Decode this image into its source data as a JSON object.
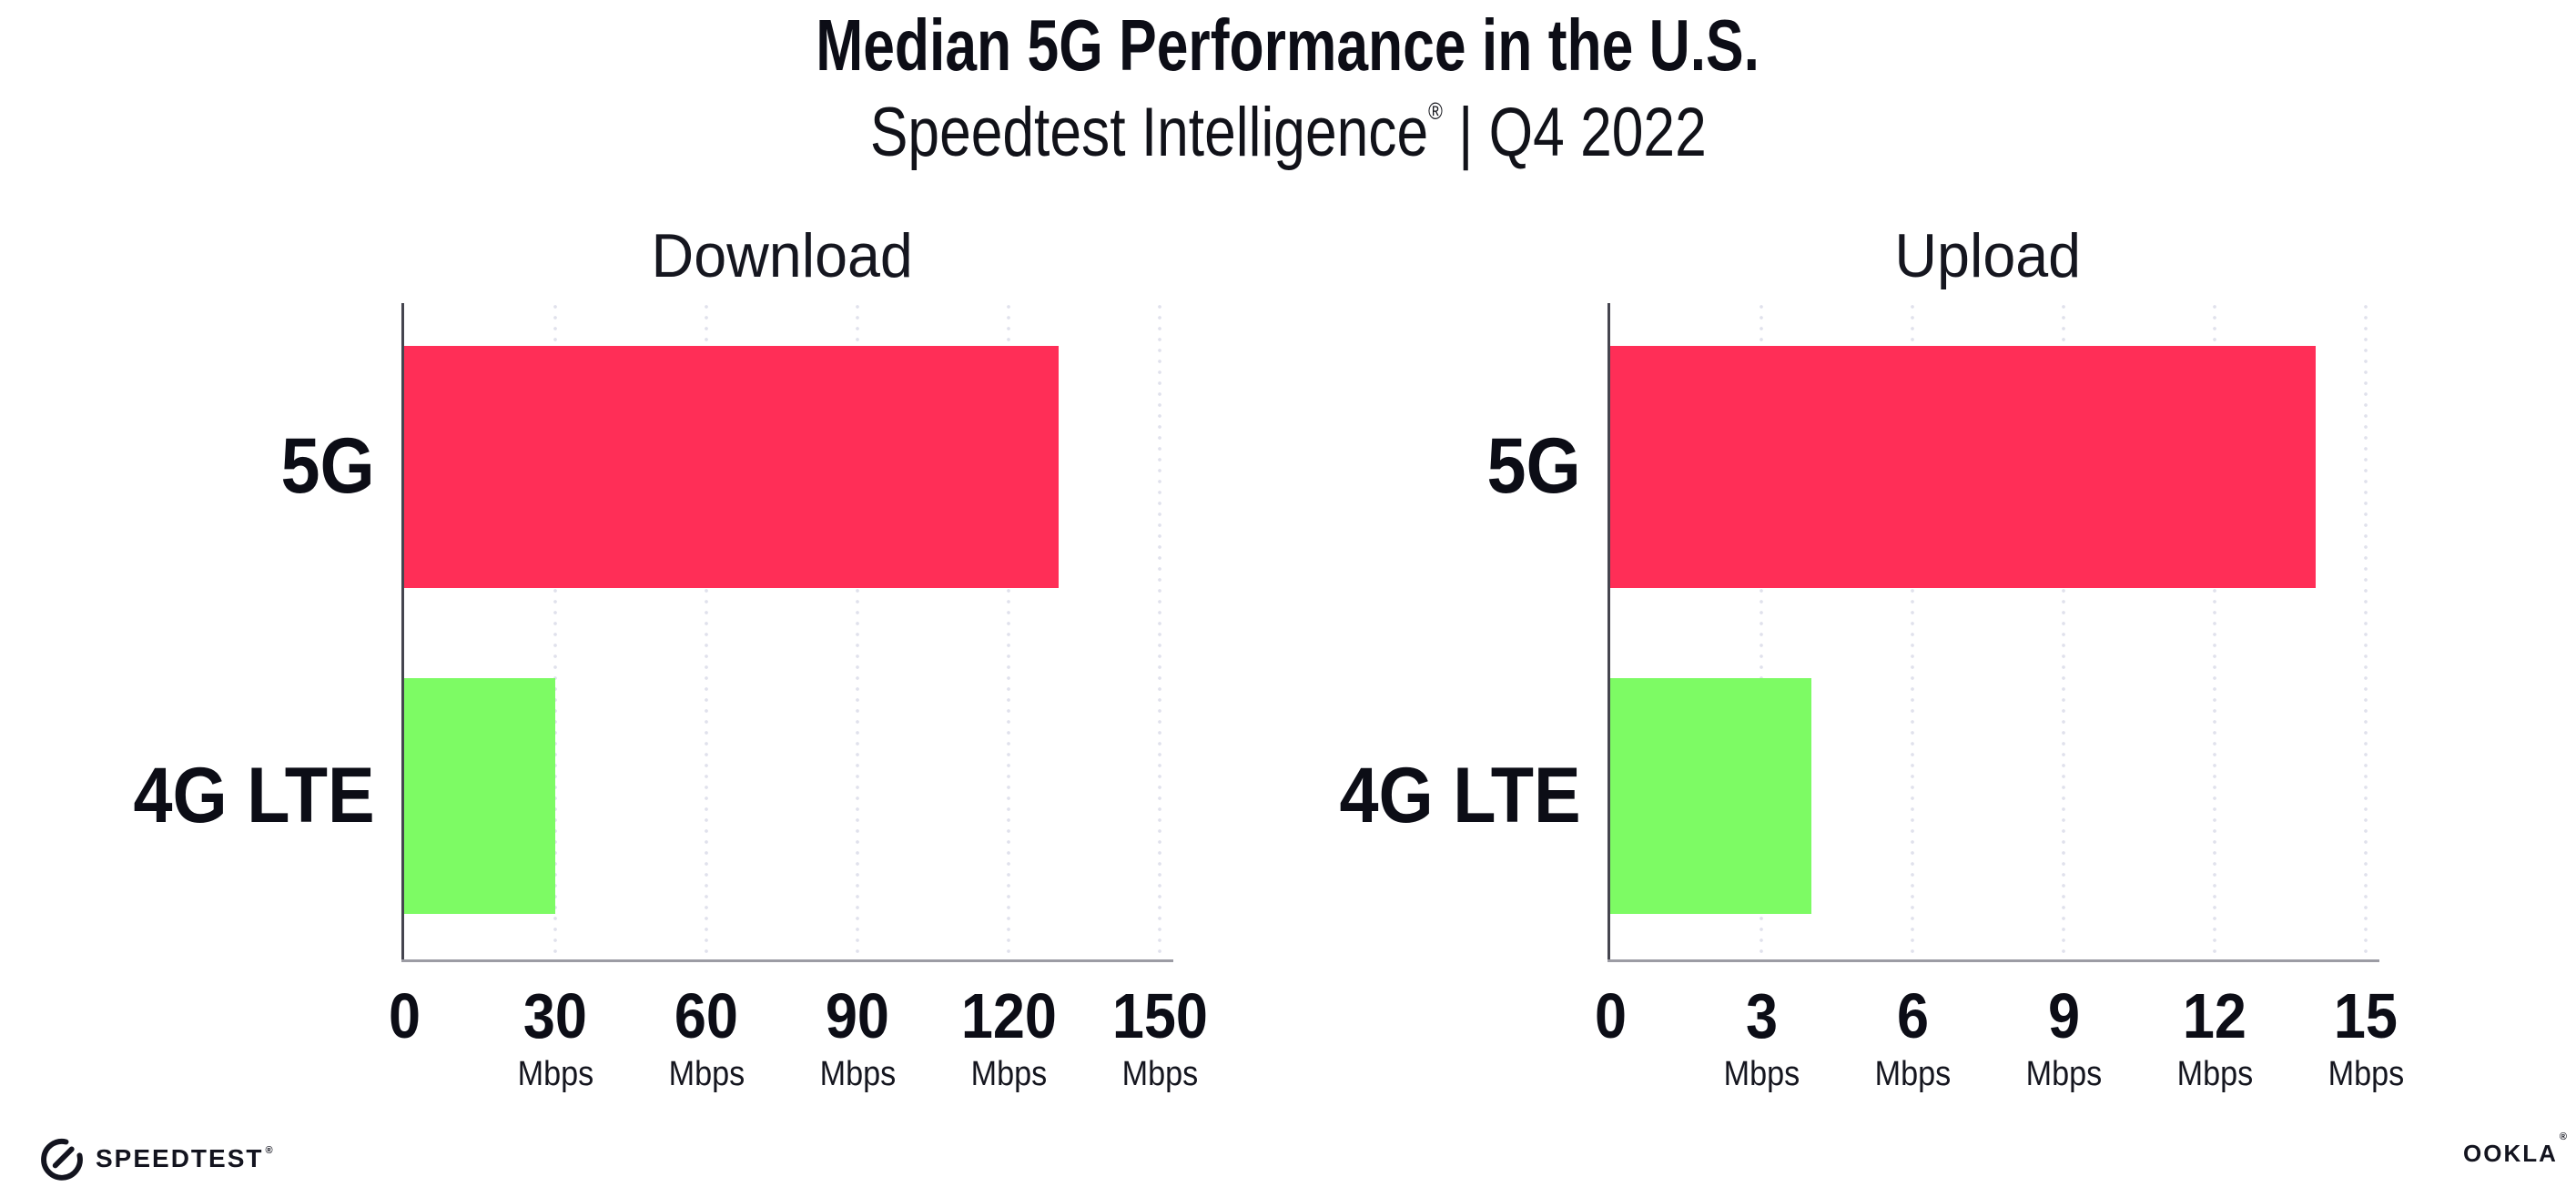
{
  "header": {
    "title": "Median 5G Performance in the U.S.",
    "subtitle_brand": "Speedtest Intelligence",
    "subtitle_mark": "®",
    "subtitle_rest": " | Q4 2022"
  },
  "chart_data": [
    {
      "type": "bar",
      "orientation": "horizontal",
      "title": "Download",
      "categories": [
        "5G",
        "4G LTE"
      ],
      "values": [
        130,
        30
      ],
      "unit": "Mbps",
      "xlim": [
        0,
        150
      ],
      "xticks": [
        0,
        30,
        60,
        90,
        120,
        150
      ],
      "tick_unit_label": "Mbps",
      "bar_colors": [
        "#FF2E57",
        "#7DFB64"
      ],
      "grid": "dotted-vertical",
      "legend": "none"
    },
    {
      "type": "bar",
      "orientation": "horizontal",
      "title": "Upload",
      "categories": [
        "5G",
        "4G LTE"
      ],
      "values": [
        14,
        4
      ],
      "unit": "Mbps",
      "xlim": [
        0,
        15
      ],
      "xticks": [
        0,
        3,
        6,
        9,
        12,
        15
      ],
      "tick_unit_label": "Mbps",
      "bar_colors": [
        "#FF2E57",
        "#7DFB64"
      ],
      "grid": "dotted-vertical",
      "legend": "none"
    }
  ],
  "footer": {
    "speedtest_label": "SPEEDTEST",
    "speedtest_mark": "®",
    "ookla_label": "OOKLA",
    "ookla_mark": "®"
  },
  "colors": {
    "bar_5g": "#FF2E57",
    "bar_4g_lte": "#7DFB64",
    "text": "#0C0D16",
    "y_axis_line": "#45454F",
    "x_axis_line": "#9C9CA4",
    "grid_dot": "#E0E1EC"
  }
}
